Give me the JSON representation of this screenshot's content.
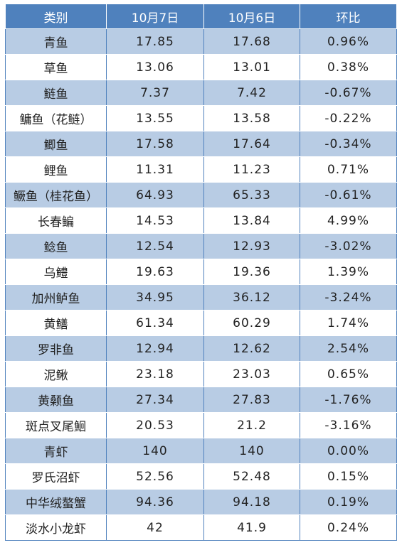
{
  "table": {
    "headers": [
      "类别",
      "10月7日",
      "10月6日",
      "环比"
    ],
    "rows": [
      [
        "青鱼",
        "17.85",
        "17.68",
        "0.96%"
      ],
      [
        "草鱼",
        "13.06",
        "13.01",
        "0.38%"
      ],
      [
        "鲢鱼",
        "7.37",
        "7.42",
        "-0.67%"
      ],
      [
        "鳙鱼（花鲢）",
        "13.55",
        "13.58",
        "-0.22%"
      ],
      [
        "鲫鱼",
        "17.58",
        "17.64",
        "-0.34%"
      ],
      [
        "鲤鱼",
        "11.31",
        "11.23",
        "0.71%"
      ],
      [
        "鳜鱼（桂花鱼）",
        "64.93",
        "65.33",
        "-0.61%"
      ],
      [
        "长春鳊",
        "14.53",
        "13.84",
        "4.99%"
      ],
      [
        "鲶鱼",
        "12.54",
        "12.93",
        "-3.02%"
      ],
      [
        "乌鳢",
        "19.63",
        "19.36",
        "1.39%"
      ],
      [
        "加州鲈鱼",
        "34.95",
        "36.12",
        "-3.24%"
      ],
      [
        "黄鳝",
        "61.34",
        "60.29",
        "1.74%"
      ],
      [
        "罗非鱼",
        "12.94",
        "12.62",
        "2.54%"
      ],
      [
        "泥鳅",
        "23.18",
        "23.03",
        "0.65%"
      ],
      [
        "黄颡鱼",
        "27.34",
        "27.83",
        "-1.76%"
      ],
      [
        "斑点叉尾鮰",
        "20.53",
        "21.2",
        "-3.16%"
      ],
      [
        "青虾",
        "140",
        "140",
        "0.00%"
      ],
      [
        "罗氏沼虾",
        "52.56",
        "52.48",
        "0.15%"
      ],
      [
        "中华绒螯蟹",
        "94.36",
        "94.18",
        "0.19%"
      ],
      [
        "淡水小龙虾",
        "42",
        "41.9",
        "0.24%"
      ]
    ]
  },
  "colors": {
    "header_bg": "#4f81bd",
    "odd_row_bg": "#b8cce4",
    "even_row_bg": "#ffffff"
  }
}
